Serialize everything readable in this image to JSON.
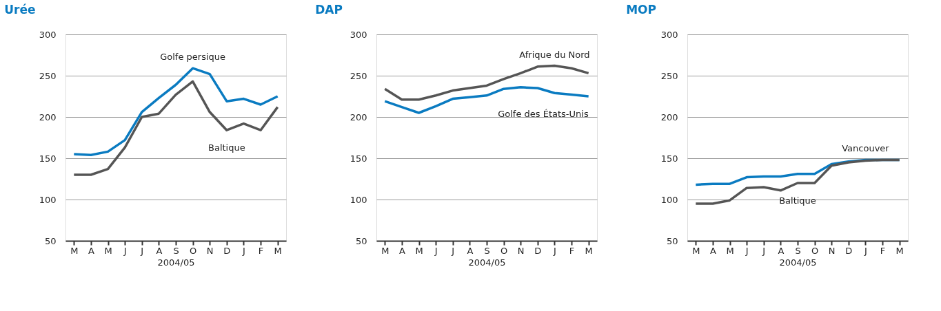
{
  "chart_data": [
    {
      "type": "line",
      "title": "Urée",
      "xlabel": "2004/05",
      "categories": [
        "M",
        "A",
        "M",
        "J",
        "J",
        "A",
        "S",
        "O",
        "N",
        "D",
        "J",
        "F",
        "M"
      ],
      "ylim": [
        50,
        300
      ],
      "yticks": [
        50,
        100,
        150,
        200,
        250,
        300
      ],
      "grid": "y",
      "line_style": "solid",
      "series": [
        {
          "name": "Golfe persique",
          "color": "#0a7bc1",
          "values": [
            155,
            154,
            158,
            172,
            206,
            223,
            239,
            259,
            252,
            219,
            222,
            215,
            225
          ]
        },
        {
          "name": "Baltique",
          "color": "#555555",
          "values": [
            130,
            130,
            137,
            163,
            200,
            204,
            227,
            243,
            206,
            184,
            192,
            184,
            212
          ]
        }
      ]
    },
    {
      "type": "line",
      "title": "DAP",
      "xlabel": "2004/05",
      "categories": [
        "M",
        "A",
        "M",
        "J",
        "J",
        "A",
        "S",
        "O",
        "N",
        "D",
        "J",
        "F",
        "M"
      ],
      "ylim": [
        50,
        300
      ],
      "yticks": [
        50,
        100,
        150,
        200,
        250,
        300
      ],
      "grid": "y",
      "line_style": "solid",
      "series": [
        {
          "name": "Afrique du Nord",
          "color": "#555555",
          "values": [
            234,
            221,
            221,
            226,
            232,
            235,
            238,
            246,
            253,
            261,
            262,
            259,
            253
          ]
        },
        {
          "name": "Golfe des États-Unis",
          "color": "#0a7bc1",
          "values": [
            219,
            212,
            205,
            213,
            222,
            224,
            226,
            234,
            236,
            235,
            229,
            227,
            225
          ]
        }
      ]
    },
    {
      "type": "line",
      "title": "MOP",
      "xlabel": "2004/05",
      "categories": [
        "M",
        "A",
        "M",
        "J",
        "J",
        "A",
        "S",
        "O",
        "N",
        "D",
        "J",
        "F",
        "M"
      ],
      "ylim": [
        50,
        300
      ],
      "yticks": [
        50,
        100,
        150,
        200,
        250,
        300
      ],
      "grid": "y",
      "line_style": "solid",
      "series": [
        {
          "name": "Vancouver",
          "color": "#0a7bc1",
          "values": [
            118,
            119,
            119,
            127,
            128,
            128,
            131,
            131,
            143,
            146,
            148,
            148,
            148
          ]
        },
        {
          "name": "Baltique",
          "color": "#555555",
          "values": [
            95,
            95,
            99,
            114,
            115,
            111,
            120,
            120,
            141,
            145,
            147,
            148,
            148
          ]
        }
      ]
    }
  ]
}
